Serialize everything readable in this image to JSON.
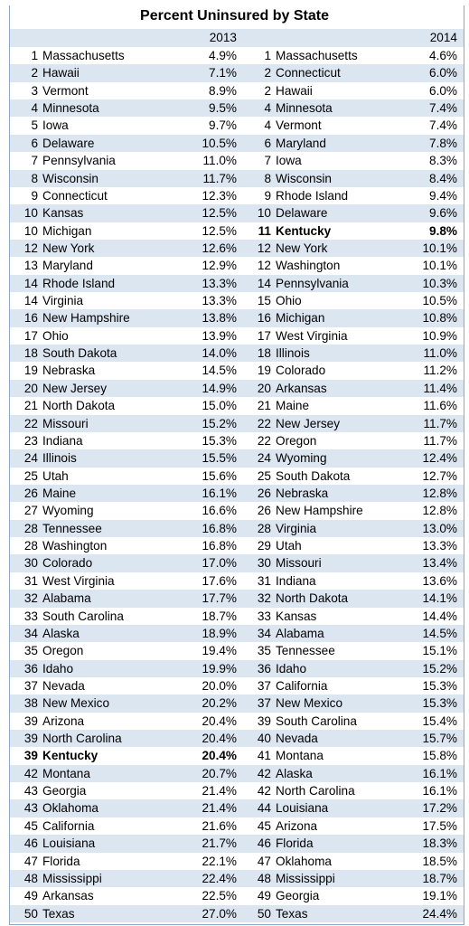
{
  "table": {
    "title": "Percent Uninsured by State",
    "header": [
      "2013",
      "2014"
    ],
    "bold_rows_left": [
      40
    ],
    "bold_rows_right": [
      10
    ],
    "rows": [
      [
        "1",
        "Massachusetts",
        "4.9%",
        "1",
        "Massachusetts",
        "4.6%"
      ],
      [
        "2",
        "Hawaii",
        "7.1%",
        "2",
        "Connecticut",
        "6.0%"
      ],
      [
        "3",
        "Vermont",
        "8.9%",
        "2",
        "Hawaii",
        "6.0%"
      ],
      [
        "4",
        "Minnesota",
        "9.5%",
        "4",
        "Minnesota",
        "7.4%"
      ],
      [
        "5",
        "Iowa",
        "9.7%",
        "4",
        "Vermont",
        "7.4%"
      ],
      [
        "6",
        "Delaware",
        "10.5%",
        "6",
        "Maryland",
        "7.8%"
      ],
      [
        "7",
        "Pennsylvania",
        "11.0%",
        "7",
        "Iowa",
        "8.3%"
      ],
      [
        "8",
        "Wisconsin",
        "11.7%",
        "8",
        "Wisconsin",
        "8.4%"
      ],
      [
        "9",
        "Connecticut",
        "12.3%",
        "9",
        "Rhode Island",
        "9.4%"
      ],
      [
        "10",
        "Kansas",
        "12.5%",
        "10",
        "Delaware",
        "9.6%"
      ],
      [
        "10",
        "Michigan",
        "12.5%",
        "11",
        "Kentucky",
        "9.8%"
      ],
      [
        "12",
        "New York",
        "12.6%",
        "12",
        "New York",
        "10.1%"
      ],
      [
        "13",
        "Maryland",
        "12.9%",
        "12",
        "Washington",
        "10.1%"
      ],
      [
        "14",
        "Rhode Island",
        "13.3%",
        "14",
        "Pennsylvania",
        "10.3%"
      ],
      [
        "14",
        "Virginia",
        "13.3%",
        "15",
        "Ohio",
        "10.5%"
      ],
      [
        "16",
        "New Hampshire",
        "13.8%",
        "16",
        "Michigan",
        "10.8%"
      ],
      [
        "17",
        "Ohio",
        "13.9%",
        "17",
        "West Virginia",
        "10.9%"
      ],
      [
        "18",
        "South Dakota",
        "14.0%",
        "18",
        "Illinois",
        "11.0%"
      ],
      [
        "19",
        "Nebraska",
        "14.5%",
        "19",
        "Colorado",
        "11.2%"
      ],
      [
        "20",
        "New Jersey",
        "14.9%",
        "20",
        "Arkansas",
        "11.4%"
      ],
      [
        "21",
        "North Dakota",
        "15.0%",
        "21",
        "Maine",
        "11.6%"
      ],
      [
        "22",
        "Missouri",
        "15.2%",
        "22",
        "New Jersey",
        "11.7%"
      ],
      [
        "23",
        "Indiana",
        "15.3%",
        "22",
        "Oregon",
        "11.7%"
      ],
      [
        "24",
        "Illinois",
        "15.5%",
        "24",
        "Wyoming",
        "12.4%"
      ],
      [
        "25",
        "Utah",
        "15.6%",
        "25",
        "South Dakota",
        "12.7%"
      ],
      [
        "26",
        "Maine",
        "16.1%",
        "26",
        "Nebraska",
        "12.8%"
      ],
      [
        "27",
        "Wyoming",
        "16.6%",
        "26",
        "New Hampshire",
        "12.8%"
      ],
      [
        "28",
        "Tennessee",
        "16.8%",
        "28",
        "Virginia",
        "13.0%"
      ],
      [
        "28",
        "Washington",
        "16.8%",
        "29",
        "Utah",
        "13.3%"
      ],
      [
        "30",
        "Colorado",
        "17.0%",
        "30",
        "Missouri",
        "13.4%"
      ],
      [
        "31",
        "West Virginia",
        "17.6%",
        "31",
        "Indiana",
        "13.6%"
      ],
      [
        "32",
        "Alabama",
        "17.7%",
        "32",
        "North Dakota",
        "14.1%"
      ],
      [
        "33",
        "South Carolina",
        "18.7%",
        "33",
        "Kansas",
        "14.4%"
      ],
      [
        "34",
        "Alaska",
        "18.9%",
        "34",
        "Alabama",
        "14.5%"
      ],
      [
        "35",
        "Oregon",
        "19.4%",
        "35",
        "Tennessee",
        "15.1%"
      ],
      [
        "36",
        "Idaho",
        "19.9%",
        "36",
        "Idaho",
        "15.2%"
      ],
      [
        "37",
        "Nevada",
        "20.0%",
        "37",
        "California",
        "15.3%"
      ],
      [
        "38",
        "New Mexico",
        "20.2%",
        "37",
        "New Mexico",
        "15.3%"
      ],
      [
        "39",
        "Arizona",
        "20.4%",
        "39",
        "South Carolina",
        "15.4%"
      ],
      [
        "39",
        "North Carolina",
        "20.4%",
        "40",
        "Nevada",
        "15.7%"
      ],
      [
        "39",
        "Kentucky",
        "20.4%",
        "41",
        "Montana",
        "15.8%"
      ],
      [
        "42",
        "Montana",
        "20.7%",
        "42",
        "Alaska",
        "16.1%"
      ],
      [
        "43",
        "Georgia",
        "21.4%",
        "42",
        "North Carolina",
        "16.1%"
      ],
      [
        "43",
        "Oklahoma",
        "21.4%",
        "44",
        "Louisiana",
        "17.2%"
      ],
      [
        "45",
        "California",
        "21.6%",
        "45",
        "Arizona",
        "17.5%"
      ],
      [
        "46",
        "Louisiana",
        "21.7%",
        "46",
        "Florida",
        "18.3%"
      ],
      [
        "47",
        "Florida",
        "22.1%",
        "47",
        "Oklahoma",
        "18.5%"
      ],
      [
        "48",
        "Mississippi",
        "22.4%",
        "48",
        "Mississippi",
        "18.7%"
      ],
      [
        "49",
        "Arkansas",
        "22.5%",
        "49",
        "Georgia",
        "19.1%"
      ],
      [
        "50",
        "Texas",
        "27.0%",
        "50",
        "Texas",
        "24.4%"
      ]
    ]
  }
}
